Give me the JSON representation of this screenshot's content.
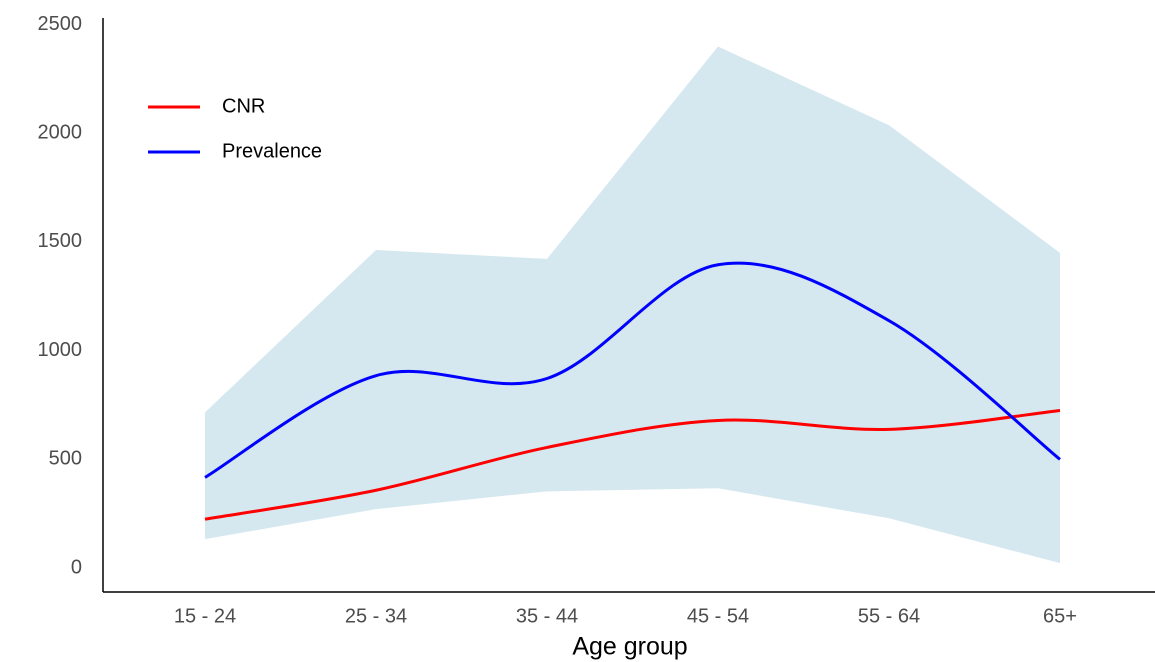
{
  "chart_data": {
    "type": "line",
    "x_label": "Age group",
    "categories": [
      "15 - 24",
      "25 - 34",
      "35 - 44",
      "45 - 54",
      "55 - 64",
      "65+"
    ],
    "series": [
      {
        "name": "CNR",
        "color": "#ff0000",
        "values": [
          225,
          358,
          555,
          679,
          638,
          725
        ]
      },
      {
        "name": "Prevalence",
        "color": "#0000ff",
        "values": [
          417,
          885,
          872,
          1395,
          1138,
          500
        ]
      }
    ],
    "interval": {
      "color": "#d5e8f0",
      "lower": [
        133,
        271,
        353,
        367,
        229,
        23
      ],
      "upper": [
        716,
        1463,
        1422,
        2399,
        2037,
        1450
      ]
    },
    "ylim": [
      -110,
      2530
    ],
    "yticks": [
      0,
      500,
      1000,
      1500,
      2000,
      2500
    ],
    "grid": false,
    "legend": "top-left"
  }
}
